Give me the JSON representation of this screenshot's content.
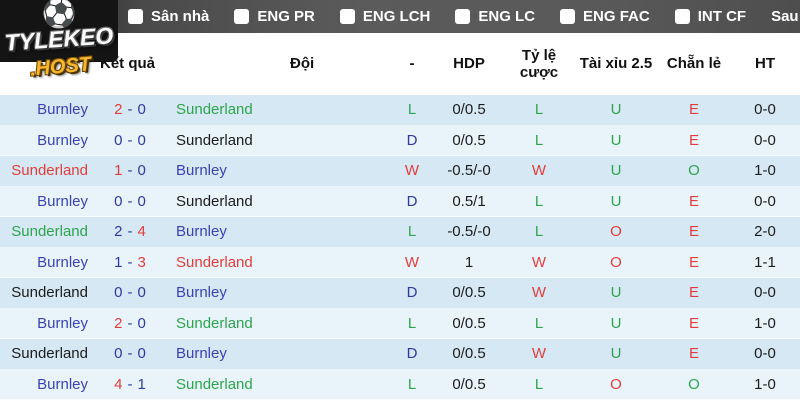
{
  "logo": {
    "title": "TYLEKEO",
    "suffix": ".HOST",
    "icon": "soccer-ball"
  },
  "nav": {
    "items": [
      {
        "label": "Sân nhà"
      },
      {
        "label": "ENG PR"
      },
      {
        "label": "ENG LCH"
      },
      {
        "label": "ENG LC"
      },
      {
        "label": "ENG FAC"
      },
      {
        "label": "INT CF"
      }
    ],
    "after_label": "Sau",
    "matches_count": "10"
  },
  "table": {
    "headers": {
      "result": "Kết quả",
      "team": "Đội",
      "dash": "-",
      "hdp": "HDP",
      "odds": "Tỷ lệ cược",
      "over_under": "Tài xỉu 2.5",
      "odd_even": "Chẵn lẻ",
      "ht": "HT"
    },
    "colors": {
      "red": "#e03e3c",
      "green": "#2da44e",
      "blue": "#3b43b1",
      "navy": "#2e3a9c",
      "dark": "#1c1c1c",
      "row_odd": "#d6e8f4",
      "row_even": "#e9f4fa"
    },
    "rows": [
      {
        "home": {
          "text": "Burnley",
          "color": "blue"
        },
        "score_home": {
          "text": "2",
          "color": "red"
        },
        "score_sep": {
          "text": "-",
          "color": "navy"
        },
        "score_away": {
          "text": "0",
          "color": "navy"
        },
        "away": {
          "text": "Sunderland",
          "color": "green"
        },
        "result": {
          "text": "L",
          "color": "green"
        },
        "hdp": {
          "text": "0/0.5",
          "color": "dark"
        },
        "odds": {
          "text": "L",
          "color": "green"
        },
        "over_under": {
          "text": "U",
          "color": "green"
        },
        "odd_even": {
          "text": "E",
          "color": "red"
        },
        "ht": {
          "text": "0-0",
          "color": "dark"
        }
      },
      {
        "home": {
          "text": "Burnley",
          "color": "blue"
        },
        "score_home": {
          "text": "0",
          "color": "navy"
        },
        "score_sep": {
          "text": "-",
          "color": "navy"
        },
        "score_away": {
          "text": "0",
          "color": "navy"
        },
        "away": {
          "text": "Sunderland",
          "color": "dark"
        },
        "result": {
          "text": "D",
          "color": "navy"
        },
        "hdp": {
          "text": "0/0.5",
          "color": "dark"
        },
        "odds": {
          "text": "L",
          "color": "green"
        },
        "over_under": {
          "text": "U",
          "color": "green"
        },
        "odd_even": {
          "text": "E",
          "color": "red"
        },
        "ht": {
          "text": "0-0",
          "color": "dark"
        }
      },
      {
        "home": {
          "text": "Sunderland",
          "color": "red"
        },
        "score_home": {
          "text": "1",
          "color": "red"
        },
        "score_sep": {
          "text": "-",
          "color": "navy"
        },
        "score_away": {
          "text": "0",
          "color": "navy"
        },
        "away": {
          "text": "Burnley",
          "color": "blue"
        },
        "result": {
          "text": "W",
          "color": "red"
        },
        "hdp": {
          "text": "-0.5/-0",
          "color": "dark"
        },
        "odds": {
          "text": "W",
          "color": "red"
        },
        "over_under": {
          "text": "U",
          "color": "green"
        },
        "odd_even": {
          "text": "O",
          "color": "green"
        },
        "ht": {
          "text": "1-0",
          "color": "dark"
        }
      },
      {
        "home": {
          "text": "Burnley",
          "color": "blue"
        },
        "score_home": {
          "text": "0",
          "color": "navy"
        },
        "score_sep": {
          "text": "-",
          "color": "navy"
        },
        "score_away": {
          "text": "0",
          "color": "navy"
        },
        "away": {
          "text": "Sunderland",
          "color": "dark"
        },
        "result": {
          "text": "D",
          "color": "navy"
        },
        "hdp": {
          "text": "0.5/1",
          "color": "dark"
        },
        "odds": {
          "text": "L",
          "color": "green"
        },
        "over_under": {
          "text": "U",
          "color": "green"
        },
        "odd_even": {
          "text": "E",
          "color": "red"
        },
        "ht": {
          "text": "0-0",
          "color": "dark"
        }
      },
      {
        "home": {
          "text": "Sunderland",
          "color": "green"
        },
        "score_home": {
          "text": "2",
          "color": "navy"
        },
        "score_sep": {
          "text": "-",
          "color": "navy"
        },
        "score_away": {
          "text": "4",
          "color": "red"
        },
        "away": {
          "text": "Burnley",
          "color": "blue"
        },
        "result": {
          "text": "L",
          "color": "green"
        },
        "hdp": {
          "text": "-0.5/-0",
          "color": "dark"
        },
        "odds": {
          "text": "L",
          "color": "green"
        },
        "over_under": {
          "text": "O",
          "color": "red"
        },
        "odd_even": {
          "text": "E",
          "color": "red"
        },
        "ht": {
          "text": "2-0",
          "color": "dark"
        }
      },
      {
        "home": {
          "text": "Burnley",
          "color": "blue"
        },
        "score_home": {
          "text": "1",
          "color": "navy"
        },
        "score_sep": {
          "text": "-",
          "color": "navy"
        },
        "score_away": {
          "text": "3",
          "color": "red"
        },
        "away": {
          "text": "Sunderland",
          "color": "red"
        },
        "result": {
          "text": "W",
          "color": "red"
        },
        "hdp": {
          "text": "1",
          "color": "dark"
        },
        "odds": {
          "text": "W",
          "color": "red"
        },
        "over_under": {
          "text": "O",
          "color": "red"
        },
        "odd_even": {
          "text": "E",
          "color": "red"
        },
        "ht": {
          "text": "1-1",
          "color": "dark"
        }
      },
      {
        "home": {
          "text": "Sunderland",
          "color": "dark"
        },
        "score_home": {
          "text": "0",
          "color": "navy"
        },
        "score_sep": {
          "text": "-",
          "color": "navy"
        },
        "score_away": {
          "text": "0",
          "color": "navy"
        },
        "away": {
          "text": "Burnley",
          "color": "blue"
        },
        "result": {
          "text": "D",
          "color": "navy"
        },
        "hdp": {
          "text": "0/0.5",
          "color": "dark"
        },
        "odds": {
          "text": "W",
          "color": "red"
        },
        "over_under": {
          "text": "U",
          "color": "green"
        },
        "odd_even": {
          "text": "E",
          "color": "red"
        },
        "ht": {
          "text": "0-0",
          "color": "dark"
        }
      },
      {
        "home": {
          "text": "Burnley",
          "color": "blue"
        },
        "score_home": {
          "text": "2",
          "color": "red"
        },
        "score_sep": {
          "text": "-",
          "color": "navy"
        },
        "score_away": {
          "text": "0",
          "color": "navy"
        },
        "away": {
          "text": "Sunderland",
          "color": "green"
        },
        "result": {
          "text": "L",
          "color": "green"
        },
        "hdp": {
          "text": "0/0.5",
          "color": "dark"
        },
        "odds": {
          "text": "L",
          "color": "green"
        },
        "over_under": {
          "text": "U",
          "color": "green"
        },
        "odd_even": {
          "text": "E",
          "color": "red"
        },
        "ht": {
          "text": "1-0",
          "color": "dark"
        }
      },
      {
        "home": {
          "text": "Sunderland",
          "color": "dark"
        },
        "score_home": {
          "text": "0",
          "color": "navy"
        },
        "score_sep": {
          "text": "-",
          "color": "navy"
        },
        "score_away": {
          "text": "0",
          "color": "navy"
        },
        "away": {
          "text": "Burnley",
          "color": "blue"
        },
        "result": {
          "text": "D",
          "color": "navy"
        },
        "hdp": {
          "text": "0/0.5",
          "color": "dark"
        },
        "odds": {
          "text": "W",
          "color": "red"
        },
        "over_under": {
          "text": "U",
          "color": "green"
        },
        "odd_even": {
          "text": "E",
          "color": "red"
        },
        "ht": {
          "text": "0-0",
          "color": "dark"
        }
      },
      {
        "home": {
          "text": "Burnley",
          "color": "blue"
        },
        "score_home": {
          "text": "4",
          "color": "red"
        },
        "score_sep": {
          "text": "-",
          "color": "navy"
        },
        "score_away": {
          "text": "1",
          "color": "navy"
        },
        "away": {
          "text": "Sunderland",
          "color": "green"
        },
        "result": {
          "text": "L",
          "color": "green"
        },
        "hdp": {
          "text": "0/0.5",
          "color": "dark"
        },
        "odds": {
          "text": "L",
          "color": "green"
        },
        "over_under": {
          "text": "O",
          "color": "red"
        },
        "odd_even": {
          "text": "O",
          "color": "green"
        },
        "ht": {
          "text": "1-0",
          "color": "dark"
        }
      }
    ]
  }
}
